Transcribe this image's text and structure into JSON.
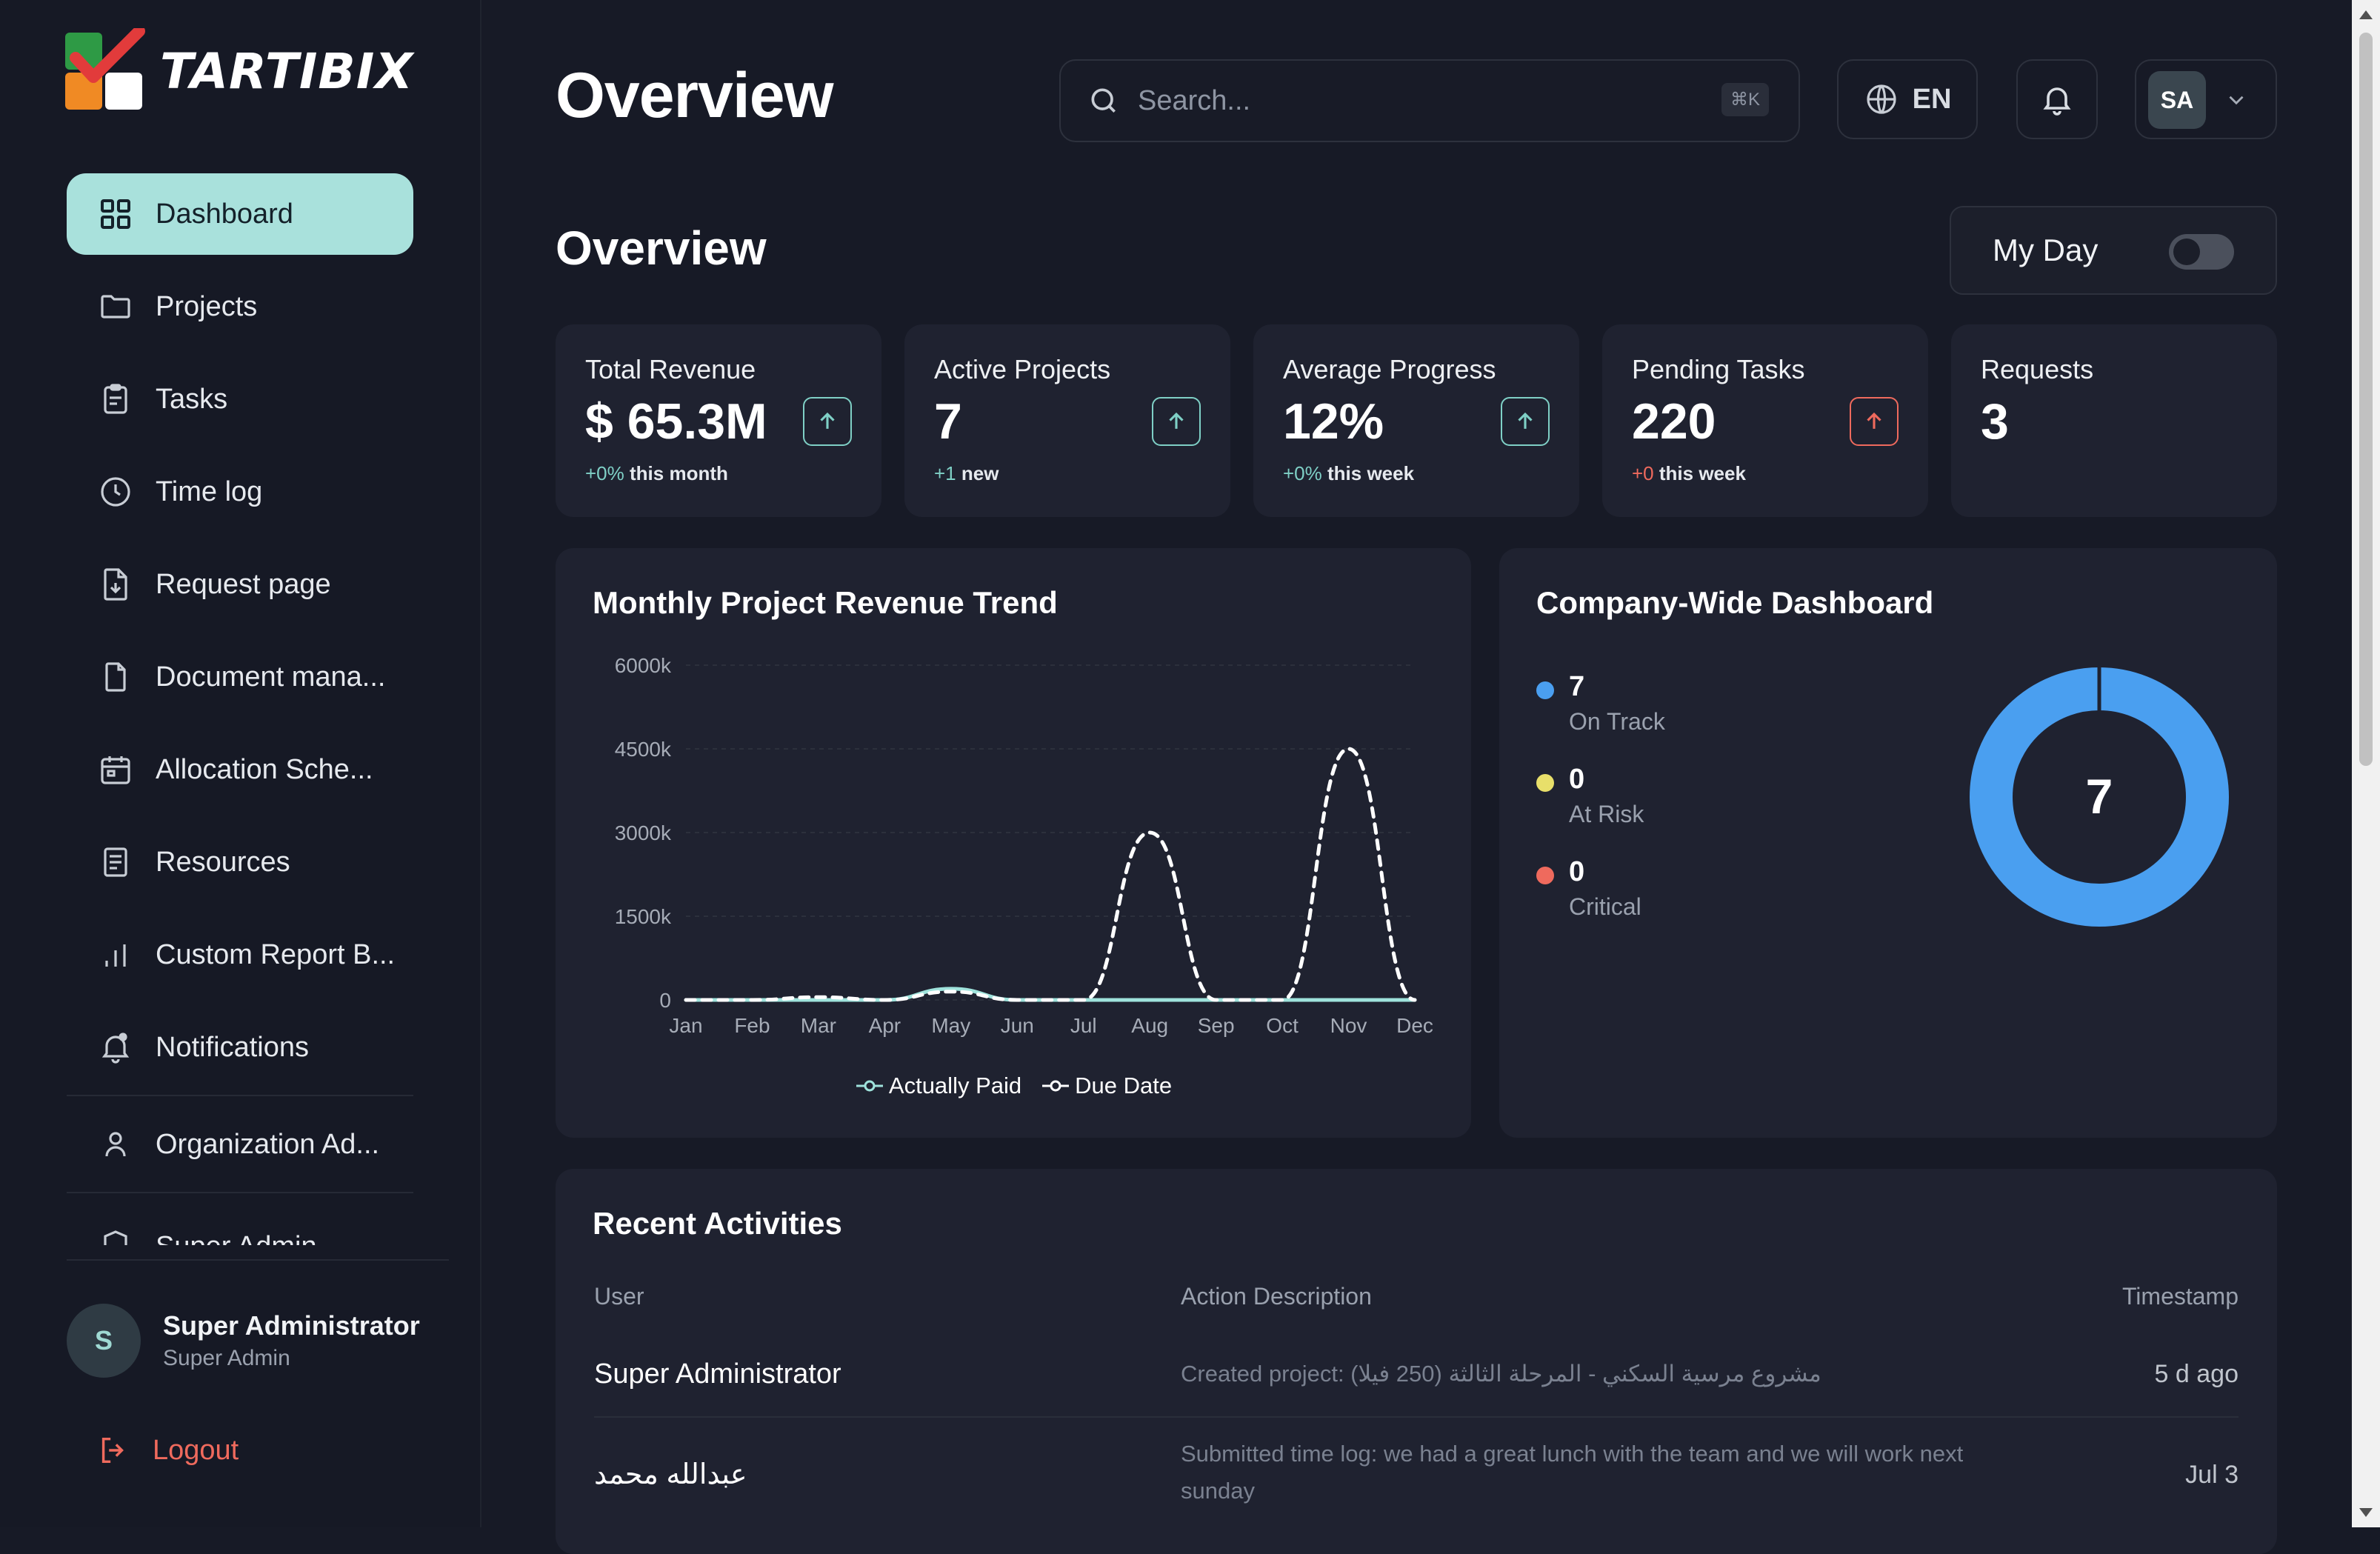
{
  "app": {
    "brand": "TARTIBIX"
  },
  "sidebar": {
    "items": [
      {
        "label": "Dashboard",
        "icon": "grid-icon"
      },
      {
        "label": "Projects",
        "icon": "folder-icon"
      },
      {
        "label": "Tasks",
        "icon": "clipboard-icon"
      },
      {
        "label": "Time log",
        "icon": "clock-icon"
      },
      {
        "label": "Request page",
        "icon": "file-download-icon"
      },
      {
        "label": "Document mana...",
        "icon": "file-icon"
      },
      {
        "label": "Allocation Sche...",
        "icon": "calendar-icon"
      },
      {
        "label": "Resources",
        "icon": "book-icon"
      },
      {
        "label": "Custom Report B...",
        "icon": "bar-chart-icon"
      },
      {
        "label": "Notifications",
        "icon": "bell-icon"
      },
      {
        "label": "Organization Ad...",
        "icon": "user-icon"
      },
      {
        "label": "Super Admin",
        "icon": "shield-icon"
      }
    ],
    "profile": {
      "initial": "S",
      "name": "Super Administrator",
      "role": "Super Admin"
    },
    "logout_label": "Logout"
  },
  "header": {
    "title": "Overview",
    "search": {
      "placeholder": "Search...",
      "shortcut": "⌘K"
    },
    "language": "EN",
    "user_initials": "SA"
  },
  "overview": {
    "title": "Overview",
    "myday_label": "My Day",
    "myday_on": false
  },
  "stats": [
    {
      "title": "Total Revenue",
      "value": "$ 65.3M",
      "delta": "+0%",
      "period": "this month",
      "trend": "up"
    },
    {
      "title": "Active Projects",
      "value": "7",
      "delta": "+1",
      "period": "new",
      "trend": "up"
    },
    {
      "title": "Average Progress",
      "value": "12%",
      "delta": "+0%",
      "period": "this week",
      "trend": "up"
    },
    {
      "title": "Pending Tasks",
      "value": "220",
      "delta": "+0",
      "period": "this week",
      "trend": "up-red"
    },
    {
      "title": "Requests",
      "value": "3"
    }
  ],
  "revenue_chart": {
    "title": "Monthly Project Revenue Trend",
    "legend": {
      "paid": "Actually Paid",
      "due": "Due Date"
    }
  },
  "chart_data": {
    "type": "line",
    "title": "Monthly Project Revenue Trend",
    "categories": [
      "Jan",
      "Feb",
      "Mar",
      "Apr",
      "May",
      "Jun",
      "Jul",
      "Aug",
      "Sep",
      "Oct",
      "Nov",
      "Dec"
    ],
    "y_ticks": [
      "0",
      "1500k",
      "3000k",
      "4500k",
      "6000k"
    ],
    "ylim": [
      0,
      6000
    ],
    "y_unit": "k",
    "series": [
      {
        "name": "Actually Paid",
        "values": [
          0,
          0,
          0,
          0,
          200,
          0,
          0,
          0,
          0,
          0,
          0,
          0
        ],
        "color": "#9fe3dc",
        "style": "solid"
      },
      {
        "name": "Due Date",
        "values": [
          0,
          0,
          50,
          0,
          150,
          0,
          0,
          3000,
          0,
          0,
          4500,
          0
        ],
        "color": "#ffffff",
        "style": "dashed"
      }
    ],
    "grid": true,
    "legend_position": "bottom"
  },
  "company_dashboard": {
    "title": "Company-Wide Dashboard",
    "center_value": "7",
    "items": [
      {
        "value": "7",
        "label": "On Track",
        "color": "#4a9ff0"
      },
      {
        "value": "0",
        "label": "At Risk",
        "color": "#e8df6a"
      },
      {
        "value": "0",
        "label": "Critical",
        "color": "#ef6a5d"
      }
    ]
  },
  "activities": {
    "title": "Recent Activities",
    "columns": {
      "user": "User",
      "action": "Action Description",
      "timestamp": "Timestamp"
    },
    "rows": [
      {
        "user": "Super Administrator",
        "action": "Created project: مشروع مرسية السكني - المرحلة الثالثة (250 فيلا)",
        "time": "5 d ago"
      },
      {
        "user": "عبدالله محمد",
        "action": "Submitted time log: we had a great lunch with the team and we will work next sunday",
        "time": "Jul 3"
      }
    ]
  }
}
